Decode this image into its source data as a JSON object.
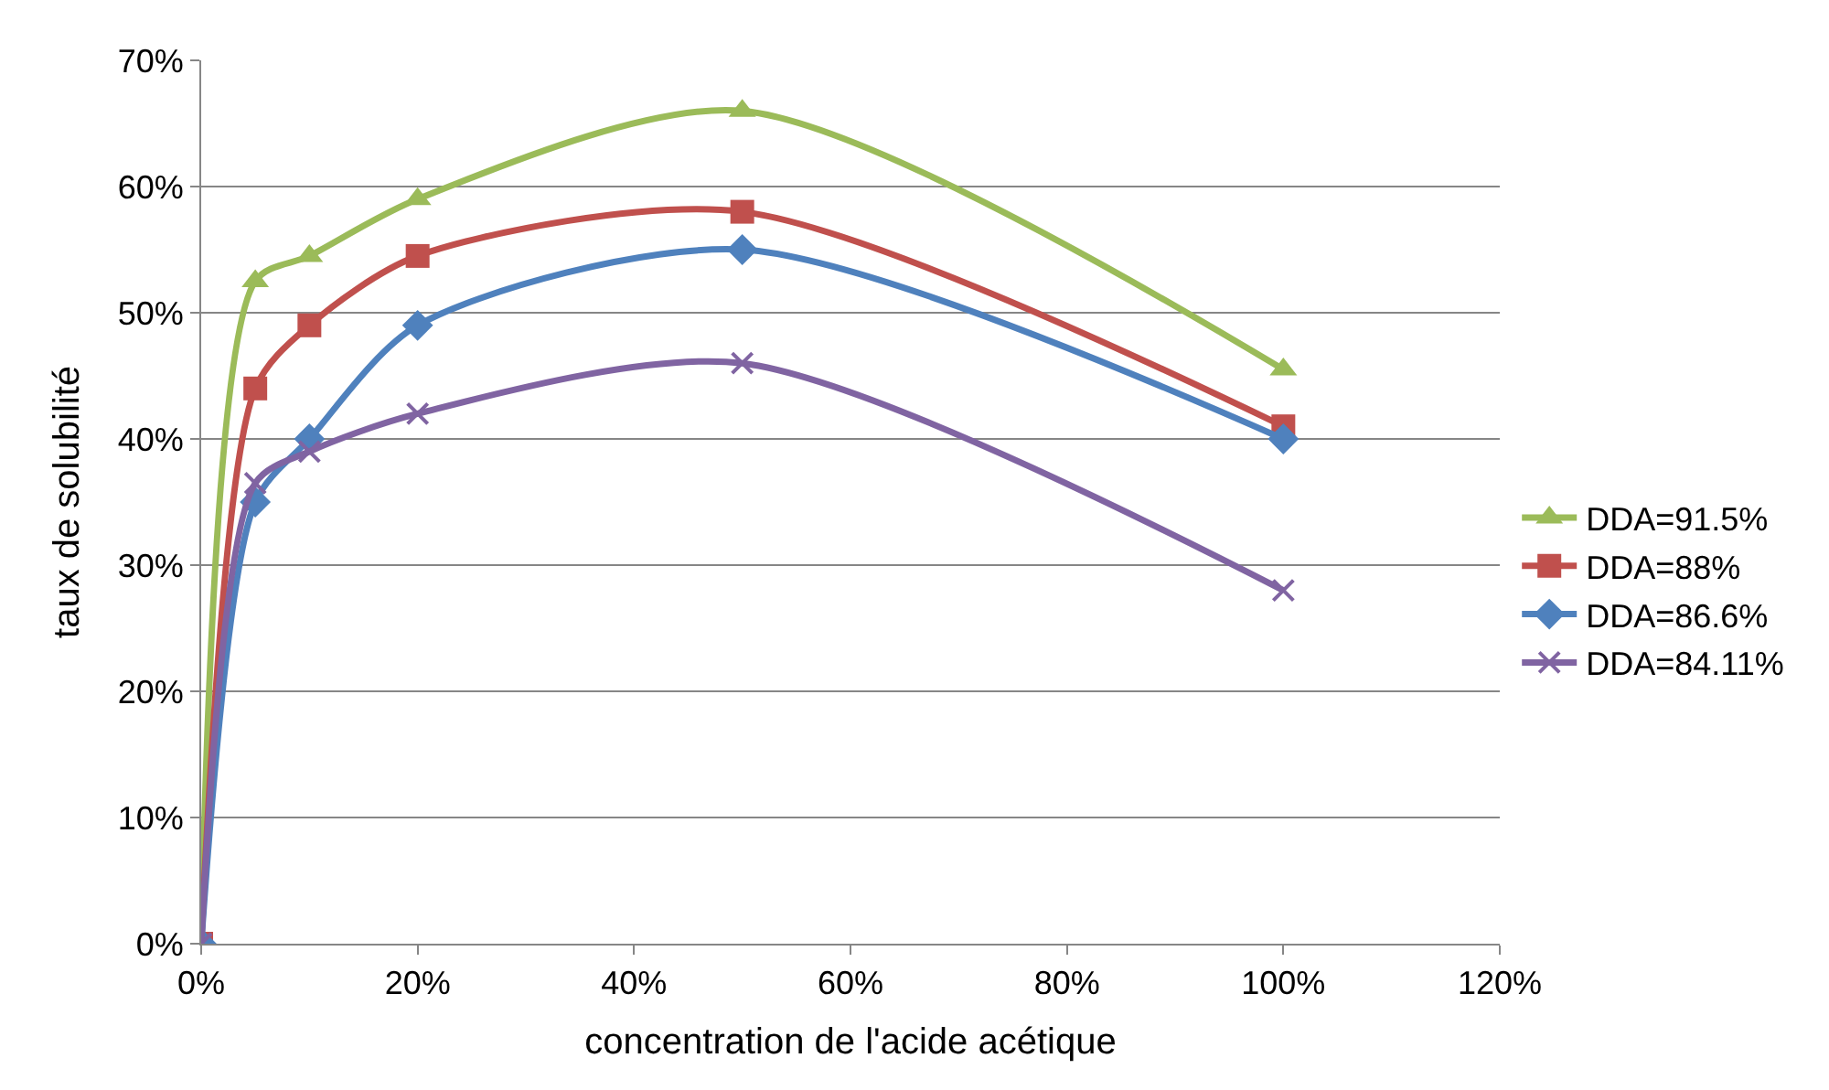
{
  "chart_data": {
    "type": "line",
    "xlabel": "concentration de l'acide acétique",
    "ylabel": "taux de solubilité",
    "x": [
      0,
      5,
      10,
      20,
      50,
      100
    ],
    "series": [
      {
        "name": "DDA=91.5%",
        "color": "#9bbb59",
        "marker": "triangle",
        "values": [
          0,
          52.5,
          54.5,
          59,
          66,
          45.5
        ]
      },
      {
        "name": "DDA=88%",
        "color": "#c0504d",
        "marker": "square",
        "values": [
          0,
          44,
          49,
          54.5,
          58,
          41
        ]
      },
      {
        "name": "DDA=86.6%",
        "color": "#4f81bd",
        "marker": "diamond",
        "values": [
          0,
          35,
          40,
          49,
          55,
          40
        ]
      },
      {
        "name": "DDA=84.11%",
        "color": "#8064a2",
        "marker": "cross",
        "values": [
          0,
          36.5,
          39,
          42,
          46,
          28
        ]
      }
    ],
    "xlim": [
      0,
      120
    ],
    "ylim": [
      0,
      70
    ],
    "xticks": [
      {
        "value": 0,
        "label": "0%"
      },
      {
        "value": 20,
        "label": "20%"
      },
      {
        "value": 40,
        "label": "40%"
      },
      {
        "value": 60,
        "label": "60%"
      },
      {
        "value": 80,
        "label": "80%"
      },
      {
        "value": 100,
        "label": "100%"
      },
      {
        "value": 120,
        "label": "120%"
      }
    ],
    "yticks": [
      {
        "value": 0,
        "label": "0%"
      },
      {
        "value": 10,
        "label": "10%"
      },
      {
        "value": 20,
        "label": "20%"
      },
      {
        "value": 30,
        "label": "30%"
      },
      {
        "value": 40,
        "label": "40%"
      },
      {
        "value": 50,
        "label": "50%"
      },
      {
        "value": 60,
        "label": "60%"
      },
      {
        "value": 70,
        "label": "70%"
      }
    ],
    "grid": "y",
    "legend": "right",
    "line_style": "solid"
  }
}
